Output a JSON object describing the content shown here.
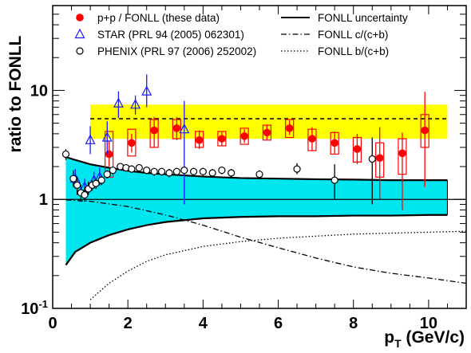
{
  "chart_data": {
    "type": "scatter",
    "title": "",
    "xlabel": "p",
    "xlabel_sub": "T",
    "xlabel_unit": " (GeV/c)",
    "ylabel": "ratio to FONLL",
    "xlim": [
      0,
      11
    ],
    "ylim": [
      0.1,
      60
    ],
    "yscale": "log",
    "x_ticks": [
      {
        "value": 0,
        "label": "0"
      },
      {
        "value": 2,
        "label": "2"
      },
      {
        "value": 4,
        "label": "4"
      },
      {
        "value": 6,
        "label": "6"
      },
      {
        "value": 8,
        "label": "8"
      },
      {
        "value": 10,
        "label": "10"
      }
    ],
    "y_ticks": [
      {
        "value": 0.1,
        "label": "10",
        "exp": "-1"
      },
      {
        "value": 1,
        "label": "1",
        "exp": ""
      },
      {
        "value": 10,
        "label": "10",
        "exp": ""
      }
    ],
    "legend": {
      "placement": "top",
      "entries": [
        {
          "marker": "filled-circle",
          "color": "#ff0000",
          "label": "p+p / FONLL (these data)"
        },
        {
          "marker": "open-triangle",
          "color": "#1a1aff",
          "label": "STAR (PRL 94 (2005) 062301)"
        },
        {
          "marker": "open-circle",
          "color": "#000000",
          "label": "PHENIX (PRL 97 (2006) 252002)"
        },
        {
          "line": "solid",
          "label": "FONLL uncertainty"
        },
        {
          "line": "dashdot",
          "label": "FONLL c/(c+b)"
        },
        {
          "line": "dotted",
          "label": "FONLL b/(c+b)"
        }
      ]
    },
    "colors": {
      "these_data": "#ff0000",
      "star": "#1a1aff",
      "phenix": "#000000",
      "fonll_band": "#00e5ee",
      "norm_band": "#ffff00"
    },
    "normalization_band": {
      "x": [
        1.0,
        10.5
      ],
      "low": 3.6,
      "high": 7.4,
      "central": 5.5
    },
    "series": [
      {
        "name": "p+p / FONLL (these data)",
        "marker": "filled-circle",
        "color": "#ff0000",
        "points": [
          {
            "x": 1.5,
            "y": 2.6,
            "ylo": 2.0,
            "yhi": 3.4,
            "slo": 1.6,
            "shi": 4.2
          },
          {
            "x": 2.1,
            "y": 3.3,
            "ylo": 2.7,
            "yhi": 4.0,
            "slo": 2.5,
            "shi": 4.4
          },
          {
            "x": 2.7,
            "y": 4.3,
            "ylo": 3.0,
            "yhi": 5.7,
            "slo": 3.0,
            "shi": 5.4
          },
          {
            "x": 3.3,
            "y": 4.5,
            "ylo": 3.5,
            "yhi": 5.7,
            "slo": 3.6,
            "shi": 5.4
          },
          {
            "x": 3.9,
            "y": 3.5,
            "ylo": 2.9,
            "yhi": 4.3,
            "slo": 3.0,
            "shi": 4.2
          },
          {
            "x": 4.5,
            "y": 3.6,
            "ylo": 3.1,
            "yhi": 4.2,
            "slo": 3.1,
            "shi": 4.2
          },
          {
            "x": 5.1,
            "y": 3.8,
            "ylo": 3.3,
            "yhi": 4.4,
            "slo": 3.2,
            "shi": 4.5
          },
          {
            "x": 5.7,
            "y": 4.1,
            "ylo": 3.5,
            "yhi": 4.8,
            "slo": 3.5,
            "shi": 4.8
          },
          {
            "x": 6.3,
            "y": 4.5,
            "ylo": 3.9,
            "yhi": 5.3,
            "slo": 3.7,
            "shi": 5.4
          },
          {
            "x": 6.9,
            "y": 3.6,
            "ylo": 2.8,
            "yhi": 4.6,
            "slo": 2.8,
            "shi": 4.4
          },
          {
            "x": 7.5,
            "y": 3.3,
            "ylo": 2.6,
            "yhi": 4.2,
            "slo": 2.6,
            "shi": 4.1
          },
          {
            "x": 8.1,
            "y": 2.9,
            "ylo": 2.1,
            "yhi": 4.0,
            "slo": 2.2,
            "shi": 3.7
          },
          {
            "x": 8.7,
            "y": 2.4,
            "ylo": 1.0,
            "yhi": 4.6,
            "slo": 1.6,
            "shi": 3.3
          },
          {
            "x": 9.3,
            "y": 2.65,
            "ylo": 0.8,
            "yhi": 4.1,
            "slo": 1.7,
            "shi": 3.6
          },
          {
            "x": 9.9,
            "y": 4.3,
            "ylo": 1.3,
            "yhi": 9.7,
            "slo": 3.0,
            "shi": 6.0
          }
        ]
      },
      {
        "name": "STAR (PRL 94 (2005) 062301)",
        "marker": "open-triangle",
        "color": "#1a1aff",
        "points": [
          {
            "x": 0.6,
            "y": 1.55,
            "ylo": 1.25,
            "yhi": 1.9
          },
          {
            "x": 0.85,
            "y": 1.3,
            "ylo": 1.1,
            "yhi": 1.55
          },
          {
            "x": 1.1,
            "y": 1.5,
            "ylo": 1.25,
            "yhi": 1.8
          },
          {
            "x": 1.25,
            "y": 1.6,
            "ylo": 1.35,
            "yhi": 1.95
          },
          {
            "x": 1.0,
            "y": 3.5,
            "ylo": 2.6,
            "yhi": 4.7
          },
          {
            "x": 1.45,
            "y": 3.7,
            "ylo": 2.6,
            "yhi": 5.2
          },
          {
            "x": 1.75,
            "y": 7.6,
            "ylo": 5.6,
            "yhi": 9.8
          },
          {
            "x": 2.2,
            "y": 7.4,
            "ylo": 6.0,
            "yhi": 9.0
          },
          {
            "x": 2.5,
            "y": 9.8,
            "ylo": 7.0,
            "yhi": 14.0
          },
          {
            "x": 3.5,
            "y": 4.4,
            "ylo": 0.9,
            "yhi": 8.0
          }
        ]
      },
      {
        "name": "PHENIX (PRL 97 (2006) 252002)",
        "marker": "open-circle",
        "color": "#000000",
        "points": [
          {
            "x": 0.35,
            "y": 2.6,
            "ylo": 2.3,
            "yhi": 2.9
          },
          {
            "x": 0.55,
            "y": 1.55,
            "ylo": 1.3,
            "yhi": 1.85
          },
          {
            "x": 0.65,
            "y": 1.35,
            "ylo": 1.1,
            "yhi": 1.6
          },
          {
            "x": 0.75,
            "y": 1.15,
            "ylo": 0.95,
            "yhi": 1.35
          },
          {
            "x": 0.85,
            "y": 1.1,
            "ylo": 0.95,
            "yhi": 1.3
          },
          {
            "x": 0.95,
            "y": 1.25,
            "ylo": 1.1,
            "yhi": 1.45
          },
          {
            "x": 1.05,
            "y": 1.35,
            "ylo": 1.2,
            "yhi": 1.5
          },
          {
            "x": 1.15,
            "y": 1.4,
            "ylo": 1.25,
            "yhi": 1.55
          },
          {
            "x": 1.3,
            "y": 1.5,
            "ylo": 1.35,
            "yhi": 1.65
          },
          {
            "x": 1.45,
            "y": 1.7,
            "ylo": 1.55,
            "yhi": 1.85
          },
          {
            "x": 1.6,
            "y": 1.85,
            "ylo": 1.7,
            "yhi": 2.0
          },
          {
            "x": 1.8,
            "y": 2.0,
            "ylo": 1.85,
            "yhi": 2.15
          },
          {
            "x": 1.95,
            "y": 1.95,
            "ylo": 1.8,
            "yhi": 2.1
          },
          {
            "x": 2.1,
            "y": 1.9,
            "ylo": 1.75,
            "yhi": 2.05
          },
          {
            "x": 2.3,
            "y": 1.95,
            "ylo": 1.8,
            "yhi": 2.1
          },
          {
            "x": 2.5,
            "y": 1.85,
            "ylo": 1.7,
            "yhi": 2.0
          },
          {
            "x": 2.7,
            "y": 1.8,
            "ylo": 1.65,
            "yhi": 1.95
          },
          {
            "x": 2.9,
            "y": 1.8,
            "ylo": 1.65,
            "yhi": 1.95
          },
          {
            "x": 3.1,
            "y": 1.75,
            "ylo": 1.6,
            "yhi": 1.9
          },
          {
            "x": 3.3,
            "y": 1.8,
            "ylo": 1.65,
            "yhi": 1.95
          },
          {
            "x": 3.5,
            "y": 1.85,
            "ylo": 1.7,
            "yhi": 2.0
          },
          {
            "x": 3.75,
            "y": 1.8,
            "ylo": 1.65,
            "yhi": 1.95
          },
          {
            "x": 4.0,
            "y": 1.8,
            "ylo": 1.65,
            "yhi": 1.95
          },
          {
            "x": 4.25,
            "y": 1.75,
            "ylo": 1.6,
            "yhi": 1.9
          },
          {
            "x": 4.5,
            "y": 1.85,
            "ylo": 1.7,
            "yhi": 2.0
          },
          {
            "x": 4.75,
            "y": 1.75,
            "ylo": 1.6,
            "yhi": 1.9
          },
          {
            "x": 5.5,
            "y": 1.7,
            "ylo": 1.55,
            "yhi": 1.85
          },
          {
            "x": 6.5,
            "y": 1.9,
            "ylo": 1.7,
            "yhi": 2.15
          },
          {
            "x": 7.5,
            "y": 1.5,
            "ylo": 1.0,
            "yhi": 2.1
          },
          {
            "x": 8.5,
            "y": 2.35,
            "ylo": 0.9,
            "yhi": 3.7
          }
        ]
      }
    ],
    "curves": {
      "fonll_band_x": [
        0.35,
        0.6,
        1.0,
        1.5,
        2.0,
        2.5,
        3.0,
        4.0,
        5.0,
        6.0,
        7.0,
        8.0,
        9.0,
        10.0,
        10.5
      ],
      "fonll_band_low": [
        0.25,
        0.33,
        0.4,
        0.47,
        0.53,
        0.58,
        0.62,
        0.67,
        0.69,
        0.7,
        0.7,
        0.71,
        0.71,
        0.72,
        0.72
      ],
      "fonll_band_high": [
        2.45,
        2.3,
        2.1,
        1.95,
        1.83,
        1.75,
        1.7,
        1.62,
        1.57,
        1.55,
        1.53,
        1.52,
        1.5,
        1.5,
        1.5
      ],
      "c_frac_x": [
        0.35,
        1,
        2,
        3,
        4,
        5,
        6,
        7,
        8,
        9,
        10,
        11
      ],
      "c_frac_y": [
        0.99,
        0.96,
        0.86,
        0.72,
        0.58,
        0.45,
        0.36,
        0.29,
        0.24,
        0.21,
        0.19,
        0.17
      ],
      "b_frac_x": [
        1.0,
        1.5,
        2,
        2.5,
        3,
        4,
        5,
        6,
        7,
        8,
        9,
        10,
        11
      ],
      "b_frac_y": [
        0.12,
        0.17,
        0.22,
        0.27,
        0.31,
        0.37,
        0.41,
        0.44,
        0.46,
        0.48,
        0.49,
        0.5,
        0.51
      ],
      "reference_line_y": 1
    }
  }
}
